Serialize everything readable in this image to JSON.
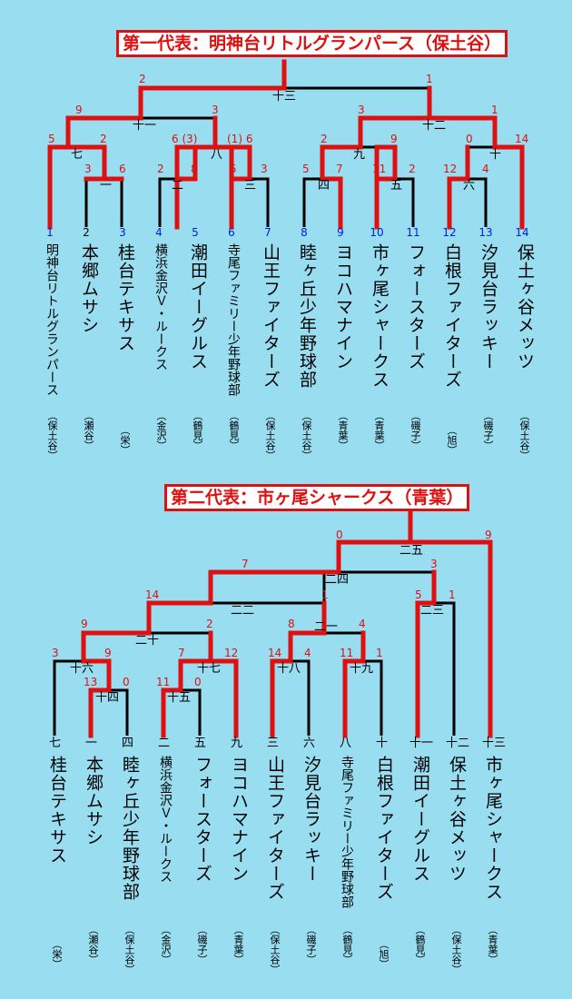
{
  "b1": {
    "title": "第一代表：明神台リトルグランパース（保土谷）",
    "teams": [
      {
        "no": "1",
        "name": "明神台リトルグランパース",
        "loc": "（保土谷）"
      },
      {
        "no": "2",
        "name": "本郷ムサシ",
        "loc": "（瀬谷）"
      },
      {
        "no": "3",
        "name": "桂台テキサス",
        "loc": "（栄）"
      },
      {
        "no": "4",
        "name": "横浜金沢Ｖ・ルークス",
        "loc": "（金沢）"
      },
      {
        "no": "5",
        "name": "潮田イーグルス",
        "loc": "（鶴見）"
      },
      {
        "no": "6",
        "name": "寺尾ファミリー少年野球部",
        "loc": "（鶴見）"
      },
      {
        "no": "7",
        "name": "山王ファイターズ",
        "loc": "（保土谷）"
      },
      {
        "no": "8",
        "name": "睦ヶ丘少年野球部",
        "loc": "（保土谷）"
      },
      {
        "no": "9",
        "name": "ヨコハマナイン",
        "loc": "（青葉）"
      },
      {
        "no": "10",
        "name": "市ヶ尾シャークス",
        "loc": "（青葉）"
      },
      {
        "no": "11",
        "name": "フォースターズ",
        "loc": "（磯子）"
      },
      {
        "no": "12",
        "name": "白根ファイターズ",
        "loc": "（旭）"
      },
      {
        "no": "13",
        "name": "汐見台ラッキー",
        "loc": "（磯子）"
      },
      {
        "no": "14",
        "name": "保土ヶ谷メッツ",
        "loc": "（保土谷）"
      }
    ],
    "matches": [
      "一",
      "二",
      "三",
      "四",
      "五",
      "六",
      "七",
      "八",
      "九",
      "十",
      "十一",
      "十二",
      "十三"
    ],
    "scores": [
      "2",
      "1",
      "9",
      "3",
      "3",
      "1",
      "5",
      "2",
      "6 (3)",
      "(1) 6",
      "2",
      "9",
      "0",
      "14",
      "3",
      "6",
      "2",
      "8",
      "5",
      "3",
      "5",
      "7",
      "11",
      "2",
      "12",
      "4"
    ]
  },
  "b2": {
    "title": "第二代表：市ヶ尾シャークス（青葉）",
    "teams": [
      {
        "mark": "七",
        "name": "桂台テキサス",
        "loc": "（栄）"
      },
      {
        "mark": "一",
        "name": "本郷ムサシ",
        "loc": "（瀬谷）"
      },
      {
        "mark": "四",
        "name": "睦ヶ丘少年野球部",
        "loc": "（保土谷）"
      },
      {
        "mark": "二",
        "name": "横浜金沢Ｖ・ルークス",
        "loc": "（金沢）"
      },
      {
        "mark": "五",
        "name": "フォースターズ",
        "loc": "（磯子）"
      },
      {
        "mark": "九",
        "name": "ヨコハマナイン",
        "loc": "（青葉）"
      },
      {
        "mark": "三",
        "name": "山王ファイターズ",
        "loc": "（保土谷）"
      },
      {
        "mark": "六",
        "name": "汐見台ラッキー",
        "loc": "（磯子）"
      },
      {
        "mark": "八",
        "name": "寺尾ファミリー少年野球部",
        "loc": "（鶴見）"
      },
      {
        "mark": "十",
        "name": "白根ファイターズ",
        "loc": "（旭）"
      },
      {
        "mark": "十一",
        "name": "潮田イーグルス",
        "loc": "（鶴見）"
      },
      {
        "mark": "十二",
        "name": "保土ヶ谷メッツ",
        "loc": "（保土谷）"
      },
      {
        "mark": "十三",
        "name": "市ヶ尾シャークス",
        "loc": "（青葉）"
      }
    ],
    "matches": [
      "十四",
      "十五",
      "十六",
      "十七",
      "十八",
      "十九",
      "二十",
      "二一",
      "二二",
      "二三",
      "二四",
      "二五"
    ],
    "scores": [
      "0",
      "9",
      "7",
      "3",
      "14",
      "1",
      "5",
      "1",
      "9",
      "2",
      "8",
      "4",
      "3",
      "9",
      "7",
      "12",
      "14",
      "4",
      "11",
      "1",
      "13",
      "0",
      "11",
      "0"
    ]
  },
  "colors": {
    "win": "#e01010",
    "line": "#000000",
    "seed": "#0020e0",
    "bg": "#99DDF0"
  }
}
